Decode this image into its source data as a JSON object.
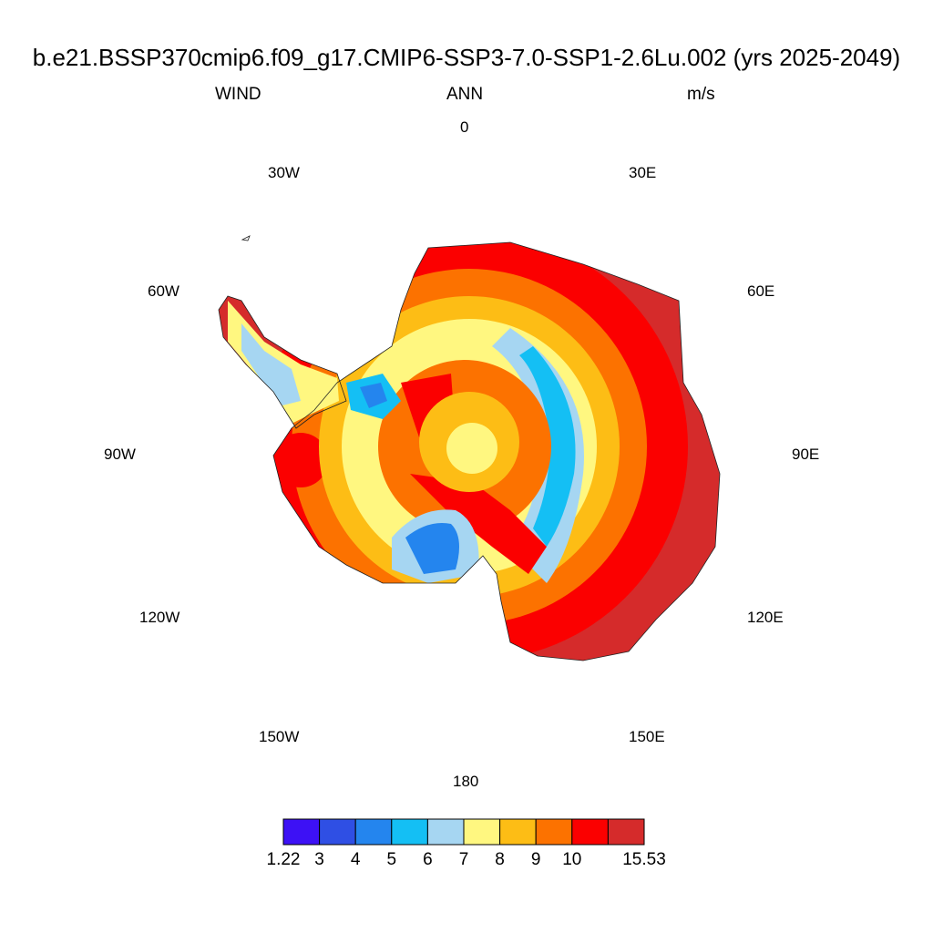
{
  "title": "b.e21.BSSP370cmip6.f09_g17.CMIP6-SSP3-7.0-SSP1-2.6Lu.002 (yrs 2025-2049)",
  "variable": "WIND",
  "season": "ANN",
  "units": "m/s",
  "longitude_labels": [
    "0",
    "30E",
    "60E",
    "90E",
    "120E",
    "150E",
    "180",
    "150W",
    "120W",
    "90W",
    "60W",
    "30W"
  ],
  "colorbar": {
    "labels": [
      "1.22",
      "3",
      "4",
      "5",
      "6",
      "7",
      "8",
      "9",
      "10",
      "15.53"
    ],
    "colors": [
      "#3d11f5",
      "#2f4fe4",
      "#2485ee",
      "#14bff4",
      "#a6d6f2",
      "#fff780",
      "#fdbd15",
      "#fc7200",
      "#fb0000",
      "#d52b2b"
    ]
  },
  "projection": "polar-stereographic-south"
}
